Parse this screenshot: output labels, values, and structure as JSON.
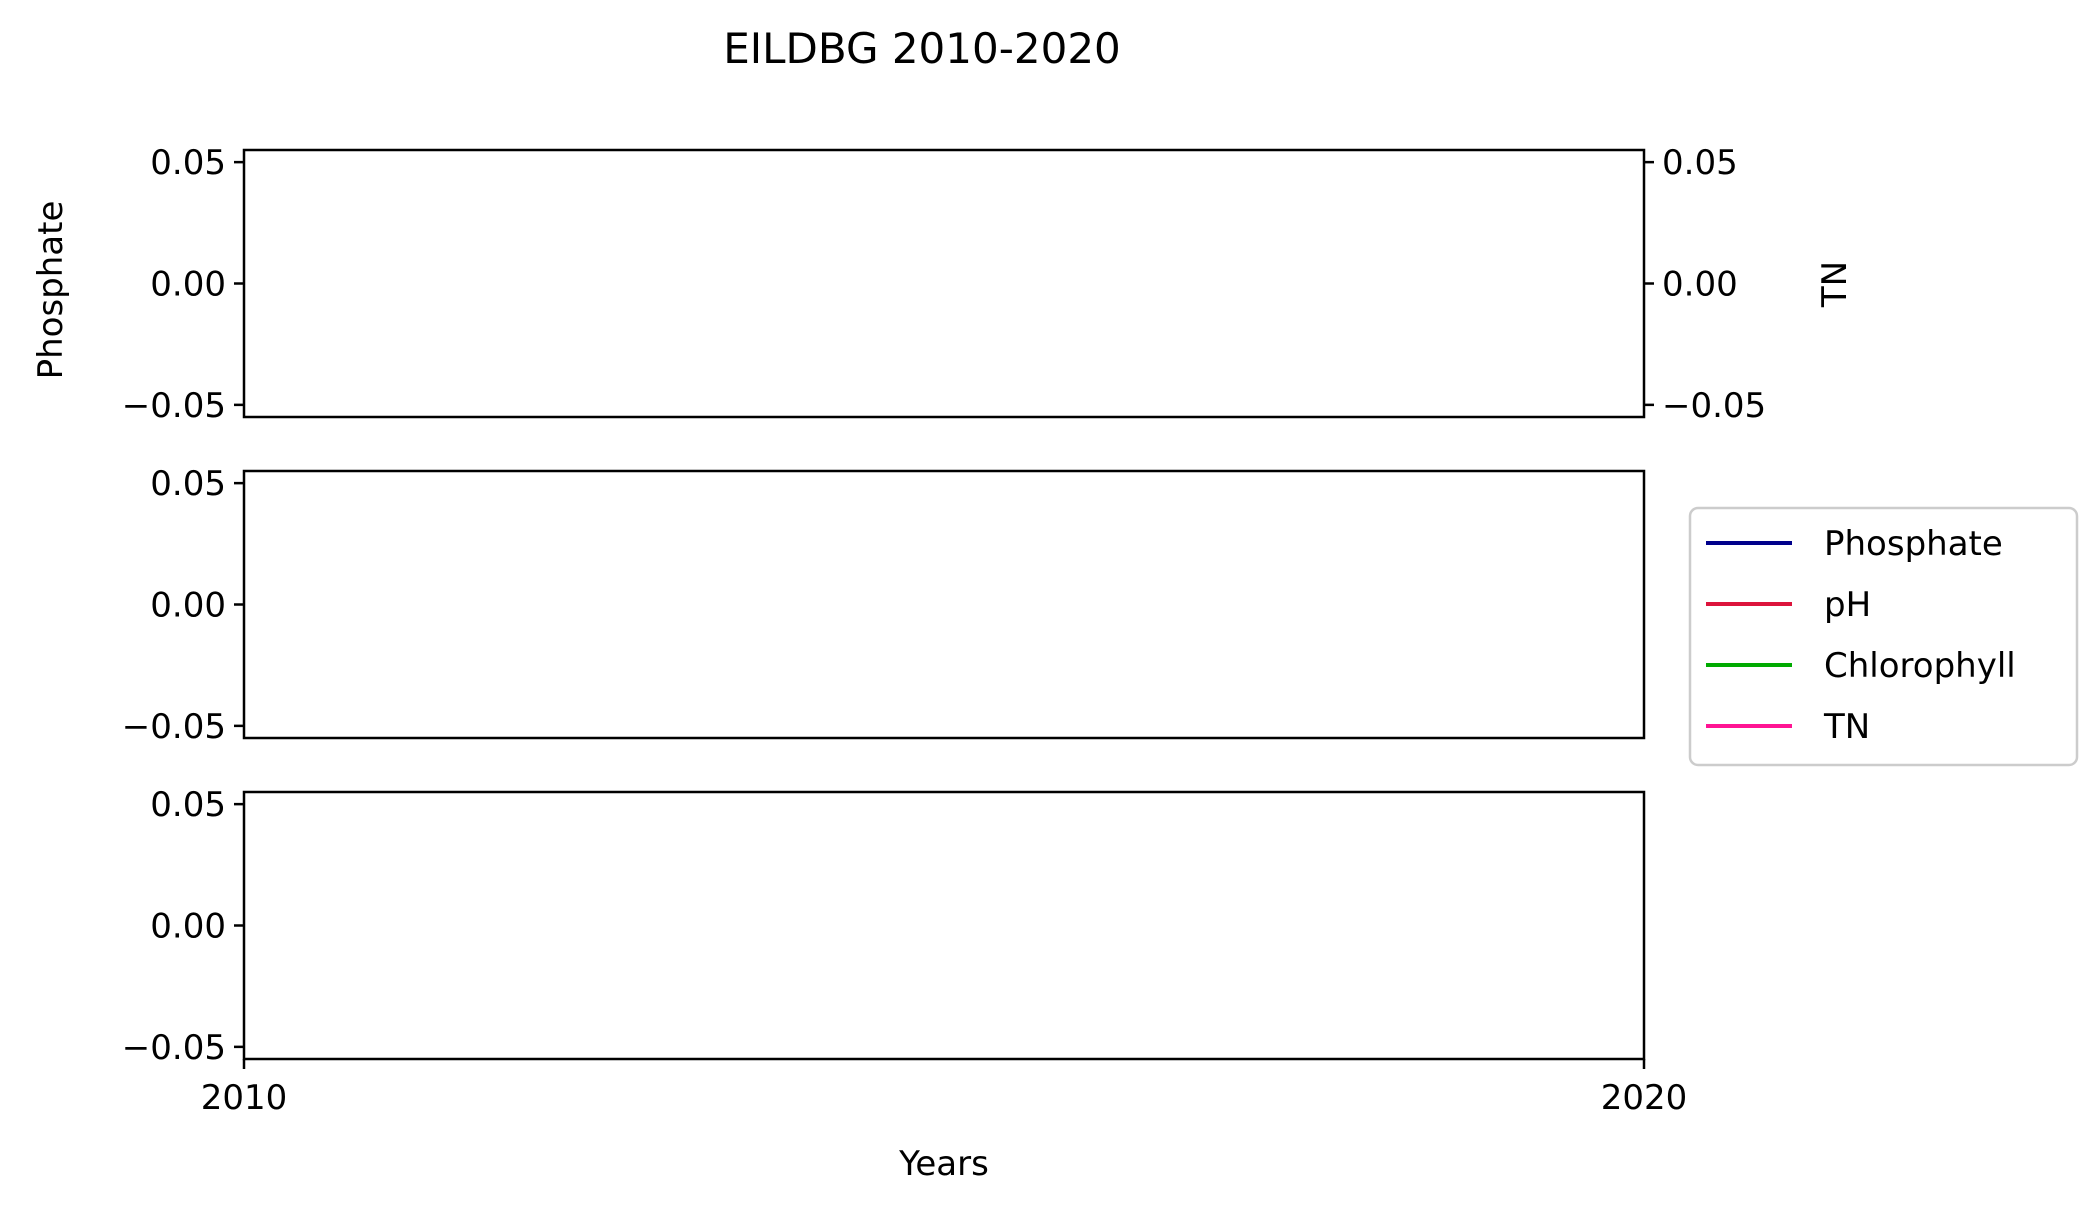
{
  "chart_data": {
    "type": "line",
    "title": "EILDBG 2010-2020",
    "xlabel": "Years",
    "xlim": [
      2010,
      2020
    ],
    "x_ticks": [
      "2010",
      "2020"
    ],
    "grid": false,
    "legend_position": "right",
    "panels": [
      {
        "ylabel": "Phosphate",
        "ylim": [
          -0.055,
          0.055
        ],
        "y_ticks": [
          "0.05",
          "0.00",
          "−0.05"
        ],
        "twin_ylabel": "TN",
        "twin_y_ticks": [
          "0.05",
          "0.00",
          "−0.05"
        ]
      },
      {
        "ylabel": "",
        "ylim": [
          -0.055,
          0.055
        ],
        "y_ticks": [
          "0.05",
          "0.00",
          "−0.05"
        ]
      },
      {
        "ylabel": "",
        "ylim": [
          -0.055,
          0.055
        ],
        "y_ticks": [
          "0.05",
          "0.00",
          "−0.05"
        ]
      }
    ],
    "series": [
      {
        "name": "Phosphate",
        "color": "#00008b",
        "x": [],
        "y": []
      },
      {
        "name": "pH",
        "color": "#dc143c",
        "x": [],
        "y": []
      },
      {
        "name": "Chlorophyll",
        "color": "#00aa00",
        "x": [],
        "y": []
      },
      {
        "name": "TN",
        "color": "#ff1493",
        "x": [],
        "y": []
      }
    ]
  }
}
